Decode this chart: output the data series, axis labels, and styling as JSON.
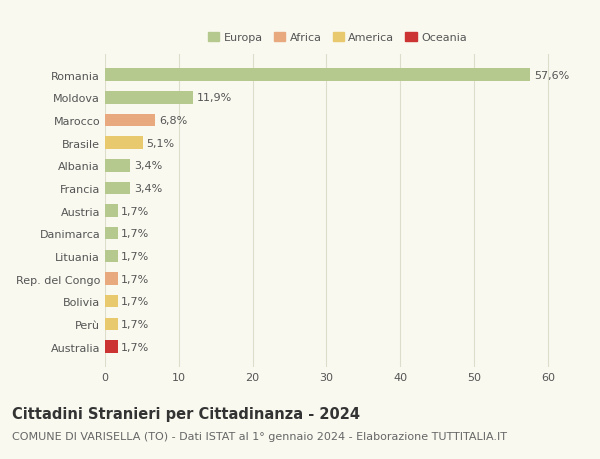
{
  "countries": [
    "Romania",
    "Moldova",
    "Marocco",
    "Brasile",
    "Albania",
    "Francia",
    "Austria",
    "Danimarca",
    "Lituania",
    "Rep. del Congo",
    "Bolivia",
    "Perù",
    "Australia"
  ],
  "values": [
    57.6,
    11.9,
    6.8,
    5.1,
    3.4,
    3.4,
    1.7,
    1.7,
    1.7,
    1.7,
    1.7,
    1.7,
    1.7
  ],
  "labels": [
    "57,6%",
    "11,9%",
    "6,8%",
    "5,1%",
    "3,4%",
    "3,4%",
    "1,7%",
    "1,7%",
    "1,7%",
    "1,7%",
    "1,7%",
    "1,7%",
    "1,7%"
  ],
  "colors": [
    "#b5c98e",
    "#b5c98e",
    "#e8a97e",
    "#e8c96e",
    "#b5c98e",
    "#b5c98e",
    "#b5c98e",
    "#b5c98e",
    "#b5c98e",
    "#e8a97e",
    "#e8c96e",
    "#e8c96e",
    "#cc3333"
  ],
  "legend_labels": [
    "Europa",
    "Africa",
    "America",
    "Oceania"
  ],
  "legend_colors": [
    "#b5c98e",
    "#e8a97e",
    "#e8c96e",
    "#cc3333"
  ],
  "xlim": [
    0,
    63
  ],
  "xticks": [
    0,
    10,
    20,
    30,
    40,
    50,
    60
  ],
  "title": "Cittadini Stranieri per Cittadinanza - 2024",
  "subtitle": "COMUNE DI VARISELLA (TO) - Dati ISTAT al 1° gennaio 2024 - Elaborazione TUTTITALIA.IT",
  "bg_color": "#f9f9f0",
  "grid_color": "#ddddcc",
  "bar_height": 0.55,
  "title_fontsize": 10.5,
  "subtitle_fontsize": 8.0,
  "label_fontsize": 8.0,
  "tick_fontsize": 8.0
}
